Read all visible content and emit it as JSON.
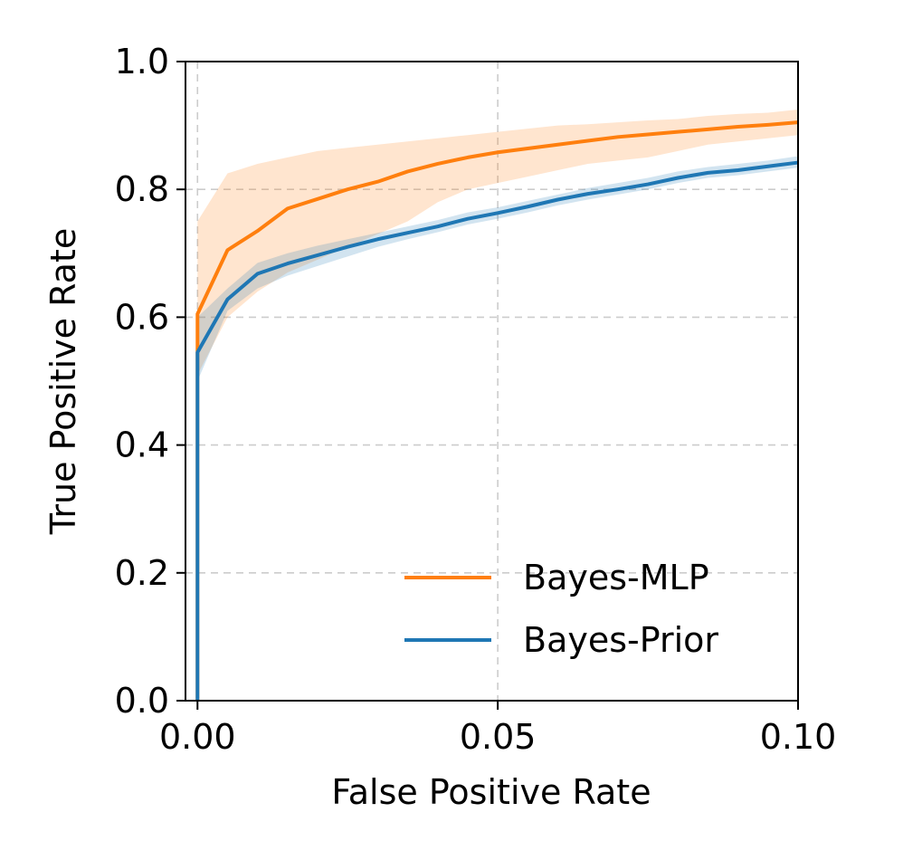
{
  "chart_data": {
    "type": "line",
    "title": "",
    "xlabel": "False Positive Rate",
    "ylabel": "True Positive Rate",
    "xlim": [
      -0.002,
      0.1
    ],
    "ylim": [
      0.0,
      1.0
    ],
    "xticks": [
      0.0,
      0.05,
      0.1
    ],
    "xtick_labels": [
      "0.00",
      "0.05",
      "0.10"
    ],
    "yticks": [
      0.0,
      0.2,
      0.4,
      0.6,
      0.8,
      1.0
    ],
    "ytick_labels": [
      "0.0",
      "0.2",
      "0.4",
      "0.6",
      "0.8",
      "1.0"
    ],
    "grid": true,
    "legend_position": "lower-right",
    "series": [
      {
        "name": "Bayes-MLP",
        "color": "#ff7f0e",
        "x": [
          0.0,
          0.0,
          0.005,
          0.01,
          0.015,
          0.02,
          0.025,
          0.03,
          0.035,
          0.04,
          0.045,
          0.05,
          0.055,
          0.06,
          0.065,
          0.07,
          0.075,
          0.08,
          0.085,
          0.09,
          0.095,
          0.1
        ],
        "y": [
          0.0,
          0.605,
          0.705,
          0.735,
          0.77,
          0.785,
          0.8,
          0.812,
          0.828,
          0.84,
          0.85,
          0.858,
          0.864,
          0.87,
          0.876,
          0.882,
          0.886,
          0.89,
          0.894,
          0.898,
          0.901,
          0.905
        ],
        "band_low": [
          0.0,
          0.51,
          0.6,
          0.64,
          0.67,
          0.69,
          0.71,
          0.73,
          0.75,
          0.78,
          0.8,
          0.81,
          0.82,
          0.83,
          0.84,
          0.845,
          0.85,
          0.86,
          0.87,
          0.875,
          0.88,
          0.885
        ],
        "band_high": [
          0.0,
          0.75,
          0.825,
          0.84,
          0.85,
          0.86,
          0.865,
          0.87,
          0.875,
          0.88,
          0.885,
          0.89,
          0.895,
          0.9,
          0.902,
          0.905,
          0.908,
          0.91,
          0.915,
          0.918,
          0.92,
          0.925
        ]
      },
      {
        "name": "Bayes-Prior",
        "color": "#1f77b4",
        "x": [
          0.0,
          0.0,
          0.005,
          0.01,
          0.015,
          0.02,
          0.025,
          0.03,
          0.035,
          0.04,
          0.045,
          0.05,
          0.055,
          0.06,
          0.065,
          0.07,
          0.075,
          0.08,
          0.085,
          0.09,
          0.095,
          0.1
        ],
        "y": [
          0.0,
          0.545,
          0.628,
          0.668,
          0.684,
          0.697,
          0.71,
          0.722,
          0.732,
          0.742,
          0.754,
          0.763,
          0.773,
          0.784,
          0.793,
          0.8,
          0.808,
          0.818,
          0.826,
          0.83,
          0.836,
          0.842
        ],
        "band_low": [
          0.0,
          0.5,
          0.61,
          0.645,
          0.665,
          0.68,
          0.695,
          0.71,
          0.722,
          0.733,
          0.745,
          0.754,
          0.764,
          0.775,
          0.784,
          0.792,
          0.8,
          0.81,
          0.818,
          0.822,
          0.828,
          0.834
        ],
        "band_high": [
          0.0,
          0.6,
          0.645,
          0.685,
          0.7,
          0.712,
          0.722,
          0.732,
          0.742,
          0.752,
          0.764,
          0.772,
          0.782,
          0.792,
          0.802,
          0.81,
          0.818,
          0.828,
          0.835,
          0.84,
          0.845,
          0.852
        ]
      }
    ]
  }
}
